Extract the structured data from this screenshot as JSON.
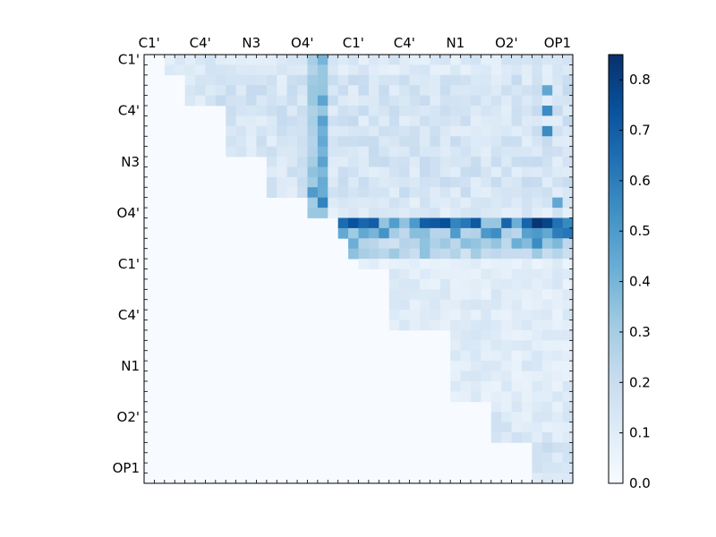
{
  "chart_data": {
    "type": "heatmap",
    "title": "",
    "xlabel": "",
    "ylabel": "",
    "n_cells": 42,
    "tick_labels": [
      "C1'",
      "C4'",
      "N3",
      "O4'",
      "C1'",
      "C4'",
      "N1",
      "O2'",
      "OP1"
    ],
    "tick_indices": [
      0,
      5,
      10,
      15,
      20,
      25,
      30,
      35,
      40
    ],
    "x_ticks_position": "top",
    "colorbar": {
      "min": 0.0,
      "max": 0.85,
      "ticks": [
        0.0,
        0.1,
        0.2,
        0.3,
        0.4,
        0.5,
        0.6,
        0.7,
        0.8
      ],
      "tick_labels": [
        "0.0",
        "0.1",
        "0.2",
        "0.3",
        "0.4",
        "0.5",
        "0.6",
        "0.7",
        "0.8"
      ],
      "position": "right"
    },
    "colormap": [
      "#f7fbff",
      "#deebf7",
      "#c6dbef",
      "#9ecae1",
      "#6baed6",
      "#4292c6",
      "#2171b5",
      "#08519c",
      "#08306b"
    ],
    "matrix_layout": "upper-triangular",
    "row_bands": [
      {
        "rows": [
          0,
          1
        ],
        "cols": [
          2,
          41
        ],
        "value": 0.12
      },
      {
        "rows": [
          2,
          4
        ],
        "cols": [
          4,
          41
        ],
        "value": 0.15
      },
      {
        "rows": [
          5,
          9
        ],
        "cols": [
          8,
          41
        ],
        "value": 0.15
      },
      {
        "rows": [
          10,
          13
        ],
        "cols": [
          12,
          41
        ],
        "value": 0.15
      },
      {
        "rows": [
          14,
          15
        ],
        "cols": [
          16,
          41
        ],
        "value": 0.12
      },
      {
        "rows": [
          16,
          16
        ],
        "cols": [
          19,
          41
        ],
        "value": 0.55
      },
      {
        "rows": [
          17,
          17
        ],
        "cols": [
          19,
          41
        ],
        "value": 0.4
      },
      {
        "rows": [
          18,
          18
        ],
        "cols": [
          20,
          41
        ],
        "value": 0.3
      },
      {
        "rows": [
          19,
          19
        ],
        "cols": [
          20,
          41
        ],
        "value": 0.3
      },
      {
        "rows": [
          20,
          20
        ],
        "cols": [
          21,
          41
        ],
        "value": 0.08
      },
      {
        "rows": [
          21,
          26
        ],
        "cols": [
          24,
          41
        ],
        "value": 0.1
      },
      {
        "rows": [
          27,
          33
        ],
        "cols": [
          30,
          41
        ],
        "value": 0.1
      },
      {
        "rows": [
          34,
          37
        ],
        "cols": [
          34,
          41
        ],
        "value": 0.12
      },
      {
        "rows": [
          38,
          41
        ],
        "cols": [
          38,
          41
        ],
        "value": 0.15
      }
    ],
    "column_bands": [
      {
        "cols": [
          16,
          16
        ],
        "rows": [
          0,
          15
        ],
        "value": 0.3
      },
      {
        "cols": [
          17,
          17
        ],
        "rows": [
          0,
          15
        ],
        "value": 0.4
      }
    ],
    "highlight_cells": [
      {
        "row": 16,
        "col": 27,
        "value": 0.7
      },
      {
        "row": 16,
        "col": 28,
        "value": 0.72
      },
      {
        "row": 16,
        "col": 29,
        "value": 0.75
      },
      {
        "row": 16,
        "col": 31,
        "value": 0.62
      },
      {
        "row": 16,
        "col": 32,
        "value": 0.72
      },
      {
        "row": 16,
        "col": 35,
        "value": 0.68
      },
      {
        "row": 16,
        "col": 38,
        "value": 0.83
      },
      {
        "row": 17,
        "col": 40,
        "value": 0.6
      },
      {
        "row": 17,
        "col": 41,
        "value": 0.62
      },
      {
        "row": 18,
        "col": 38,
        "value": 0.55
      },
      {
        "row": 14,
        "col": 17,
        "value": 0.58
      },
      {
        "row": 13,
        "col": 16,
        "value": 0.5
      },
      {
        "row": 3,
        "col": 39,
        "value": 0.45
      },
      {
        "row": 5,
        "col": 39,
        "value": 0.55
      },
      {
        "row": 7,
        "col": 39,
        "value": 0.55
      },
      {
        "row": 14,
        "col": 40,
        "value": 0.45
      }
    ]
  }
}
